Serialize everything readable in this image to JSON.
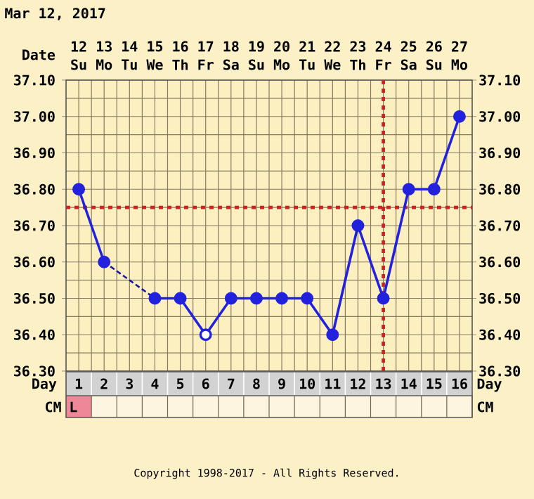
{
  "chart_data": {
    "type": "line",
    "title": "Mar 12, 2017",
    "xlabel": "Date",
    "x2label": "Day",
    "xlim": [
      11.5,
      27.5
    ],
    "xticks": [
      12,
      13,
      14,
      15,
      16,
      17,
      18,
      19,
      20,
      21,
      22,
      23,
      24,
      25,
      26,
      27
    ],
    "x2lim": [
      0.5,
      16.5
    ],
    "x2ticks": [
      1,
      2,
      3,
      4,
      5,
      6,
      7,
      8,
      9,
      10,
      11,
      12,
      13,
      14,
      15,
      16
    ],
    "ylim": [
      36.3,
      37.1
    ],
    "yticks": [
      {
        "value": 36.3,
        "label": "36.30"
      },
      {
        "value": 36.4,
        "label": "36.40"
      },
      {
        "value": 36.5,
        "label": "36.50"
      },
      {
        "value": 36.6,
        "label": "36.60"
      },
      {
        "value": 36.7,
        "label": "36.70"
      },
      {
        "value": 36.8,
        "label": "36.80"
      },
      {
        "value": 36.9,
        "label": "36.90"
      },
      {
        "value": 37.0,
        "label": "37.00"
      },
      {
        "value": 37.1,
        "label": "37.10"
      }
    ],
    "y2lim": [
      36.3,
      37.1
    ],
    "y2ticks": [
      {
        "value": 36.3,
        "label": "36.30"
      },
      {
        "value": 36.4,
        "label": "36.40"
      },
      {
        "value": 36.5,
        "label": "36.50"
      },
      {
        "value": 36.6,
        "label": "36.60"
      },
      {
        "value": 36.7,
        "label": "36.70"
      },
      {
        "value": 36.8,
        "label": "36.80"
      },
      {
        "value": 36.9,
        "label": "36.90"
      },
      {
        "value": 37.0,
        "label": "37.00"
      },
      {
        "value": 37.1,
        "label": "37.10"
      }
    ],
    "grid": true,
    "series": [
      {
        "type": "line",
        "color": "#1a1aa0",
        "marker": "none",
        "line_style": "dashed",
        "x": [
          13,
          15
        ],
        "values": [
          36.6,
          36.5
        ]
      },
      {
        "color": "#2222dd",
        "marker": "circle",
        "x": [
          12,
          13,
          14,
          15,
          16,
          17,
          18,
          19,
          20,
          21,
          22,
          23,
          24,
          25,
          26,
          27
        ],
        "values": [
          36.8,
          36.6,
          null,
          36.5,
          36.5,
          36.4,
          36.5,
          36.5,
          36.5,
          36.5,
          36.4,
          36.7,
          36.5,
          36.8,
          36.8,
          37.0
        ]
      },
      {
        "type": "scatter",
        "color": "#2222dd",
        "marker": "circle",
        "x": [
          17
        ],
        "values": [
          36.4
        ]
      }
    ],
    "ref_lines": [
      {
        "axis": "y",
        "value": 36.75,
        "color": "#cc2222",
        "line_style": "dotted"
      },
      {
        "axis": "x",
        "value": 24,
        "color": "#cc2222",
        "line_style": "dotted"
      }
    ],
    "annotations": [
      "CM",
      "L",
      "Su",
      "Mo",
      "Tu",
      "We",
      "Th",
      "Fr",
      "Sa",
      "Su",
      "Mo",
      "Tu",
      "We",
      "Th",
      "Fr",
      "Sa",
      "Su",
      "Mo",
      "Copyright 1998-2017 - All Rights Reserved."
    ]
  }
}
